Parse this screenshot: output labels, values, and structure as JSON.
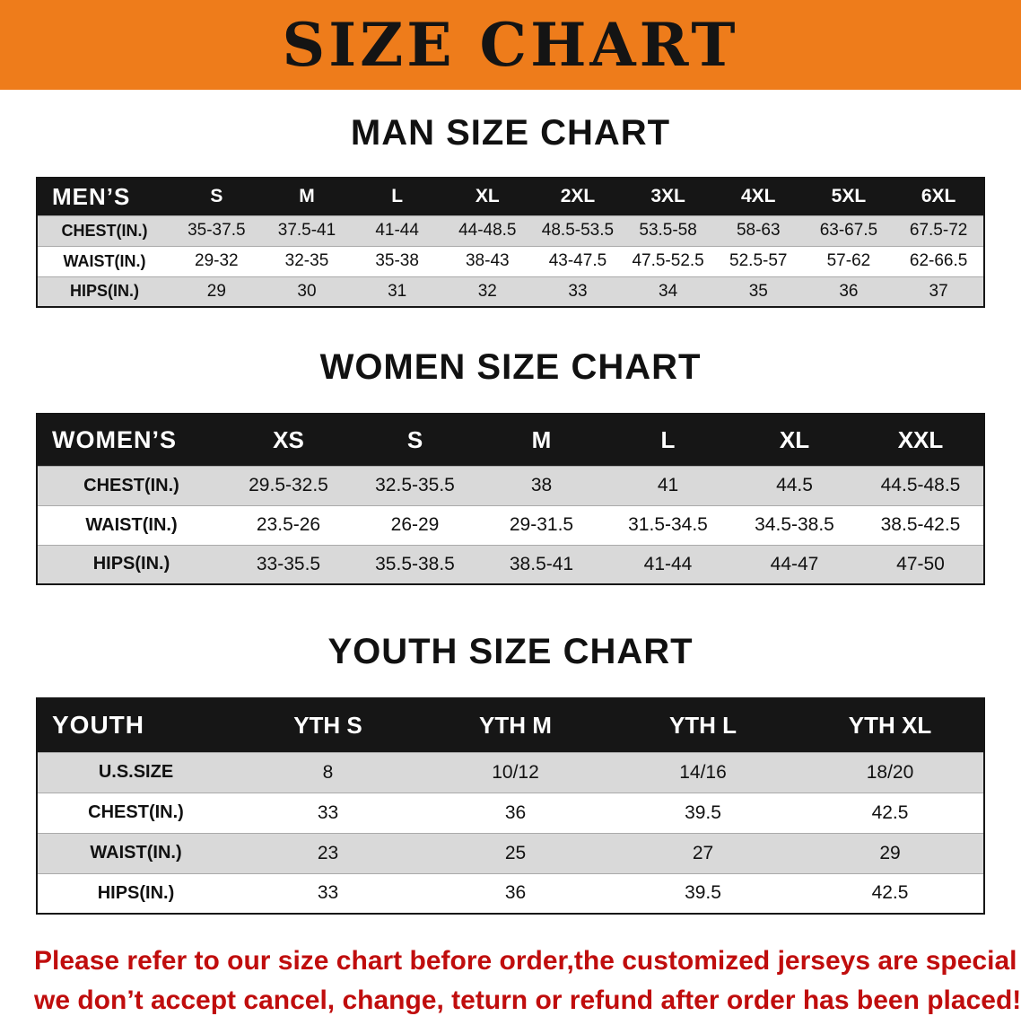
{
  "banner": {
    "title": "SIZE CHART"
  },
  "colors": {
    "banner_orange": "#ee7c1b",
    "table_header_black": "#161616",
    "row_stripe_gray": "#d9d9d9",
    "notice_red": "#c00d0d"
  },
  "sections": [
    {
      "heading": "MAN SIZE CHART",
      "table": {
        "label": "MEN’S",
        "sizes": [
          "S",
          "M",
          "L",
          "XL",
          "2XL",
          "3XL",
          "4XL",
          "5XL",
          "6XL"
        ],
        "rows": [
          {
            "label": "CHEST(IN.)",
            "values": [
              "35-37.5",
              "37.5-41",
              "41-44",
              "44-48.5",
              "48.5-53.5",
              "53.5-58",
              "58-63",
              "63-67.5",
              "67.5-72"
            ]
          },
          {
            "label": "WAIST(IN.)",
            "values": [
              "29-32",
              "32-35",
              "35-38",
              "38-43",
              "43-47.5",
              "47.5-52.5",
              "52.5-57",
              "57-62",
              "62-66.5"
            ]
          },
          {
            "label": "HIPS(IN.)",
            "values": [
              "29",
              "30",
              "31",
              "32",
              "33",
              "34",
              "35",
              "36",
              "37"
            ]
          }
        ]
      }
    },
    {
      "heading": "WOMEN SIZE CHART",
      "table": {
        "label": "WOMEN’S",
        "sizes": [
          "XS",
          "S",
          "M",
          "L",
          "XL",
          "XXL"
        ],
        "rows": [
          {
            "label": "CHEST(IN.)",
            "values": [
              "29.5-32.5",
              "32.5-35.5",
              "38",
              "41",
              "44.5",
              "44.5-48.5"
            ]
          },
          {
            "label": "WAIST(IN.)",
            "values": [
              "23.5-26",
              "26-29",
              "29-31.5",
              "31.5-34.5",
              "34.5-38.5",
              "38.5-42.5"
            ]
          },
          {
            "label": "HIPS(IN.)",
            "values": [
              "33-35.5",
              "35.5-38.5",
              "38.5-41",
              "41-44",
              "44-47",
              "47-50"
            ]
          }
        ]
      }
    },
    {
      "heading": "YOUTH SIZE CHART",
      "table": {
        "label": "YOUTH",
        "sizes": [
          "YTH S",
          "YTH M",
          "YTH L",
          "YTH XL"
        ],
        "rows": [
          {
            "label": "U.S.SIZE",
            "values": [
              "8",
              "10/12",
              "14/16",
              "18/20"
            ]
          },
          {
            "label": "CHEST(IN.)",
            "values": [
              "33",
              "36",
              "39.5",
              "42.5"
            ]
          },
          {
            "label": "WAIST(IN.)",
            "values": [
              "23",
              "25",
              "27",
              "29"
            ]
          },
          {
            "label": "HIPS(IN.)",
            "values": [
              "33",
              "36",
              "39.5",
              "42.5"
            ]
          }
        ]
      }
    }
  ],
  "footer": {
    "line1": "Please refer to our size chart before order,the customized jerseys are special products,",
    "line2": "we don’t accept cancel, change, teturn or refund after order has been placed!"
  }
}
